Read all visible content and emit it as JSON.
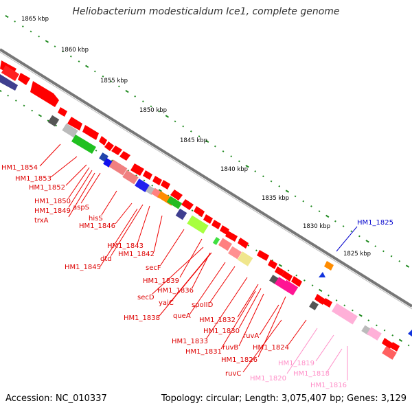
{
  "title": "Heliobacterium modesticaldum Ice1, complete genome",
  "footer": {
    "accession": "Accession: NC_010337",
    "topology": "Topology: circular; Length: 3,075,407 bp; Genes: 3,129"
  },
  "colors": {
    "backbone": "#777777",
    "tick": "#1f8a1f",
    "forward_gene": "#ff0000",
    "label_red": "#dd0000",
    "label_blue": "#0000cc",
    "label_pink": "#ff8fc8"
  },
  "scale_labels": [
    "1865 kbp",
    "1860 kbp",
    "1855 kbp",
    "1850 kbp",
    "1845 kbp",
    "1840 kbp",
    "1835 kbp",
    "1830 kbp",
    "1825 kbp"
  ],
  "gene_labels_red": [
    "HM1_1854",
    "HM1_1853",
    "HM1_1852",
    "HM1_1850",
    "HM1_1849",
    "aspS",
    "trxA",
    "hisS",
    "HM1_1846",
    "HM1_1843",
    "dtd",
    "HM1_1842",
    "HM1_1845",
    "secF",
    "HM1_1839",
    "HM1_1836",
    "secD",
    "yajC",
    "spoIID",
    "HM1_1838",
    "queA",
    "HM1_1832",
    "HM1_1830",
    "ruvA",
    "HM1_1833",
    "ruvB",
    "HM1_1824",
    "HM1_1831",
    "HM1_1826",
    "ruvC"
  ],
  "gene_labels_pink": [
    "HM1_1819",
    "HM1_1818",
    "HM1_1820",
    "HM1_1816"
  ],
  "gene_labels_blue": [
    "HM1_1825"
  ]
}
